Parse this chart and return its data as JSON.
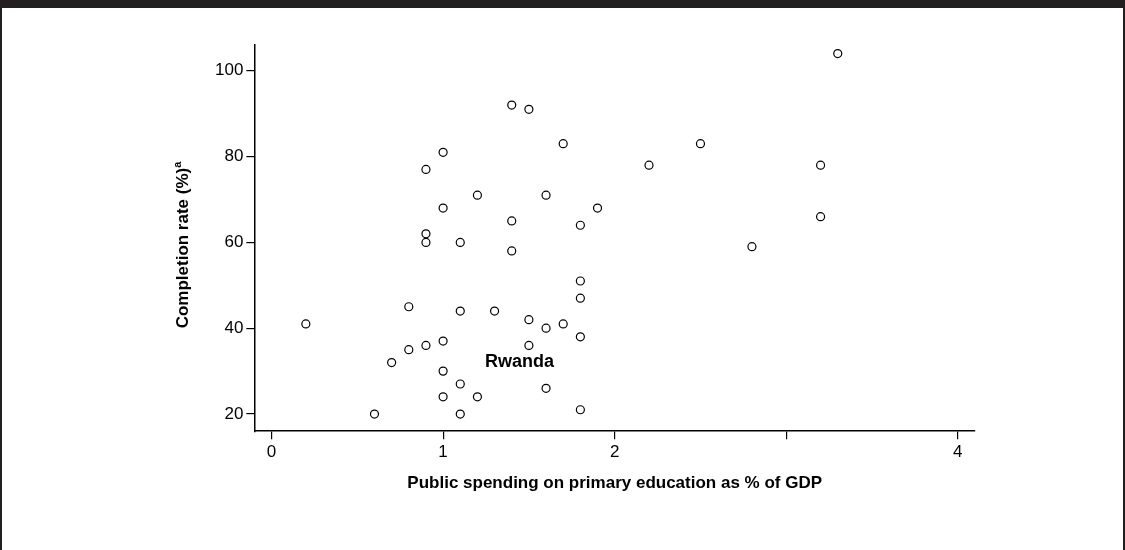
{
  "chart_data": {
    "type": "scatter",
    "xlabel": "Public spending on primary education as % of GDP",
    "ylabel": "Completion rate (%)$^{a}$",
    "x": [
      0.2,
      0.6,
      0.7,
      0.8,
      0.8,
      0.9,
      0.9,
      0.9,
      0.9,
      1.0,
      1.0,
      1.0,
      1.0,
      1.0,
      1.1,
      1.1,
      1.1,
      1.1,
      1.2,
      1.2,
      1.3,
      1.4,
      1.4,
      1.4,
      1.5,
      1.5,
      1.5,
      1.6,
      1.6,
      1.6,
      1.7,
      1.7,
      1.8,
      1.8,
      1.8,
      1.8,
      1.8,
      1.9,
      3.3,
      2.5,
      2.2,
      3.2,
      3.2,
      2.8
    ],
    "values": [
      41,
      20,
      32,
      45,
      35,
      77,
      62,
      60,
      36,
      81,
      68,
      37,
      30,
      24,
      60,
      44,
      27,
      20,
      71,
      24,
      44,
      92,
      65,
      58,
      91,
      42,
      36,
      71,
      40,
      26,
      83,
      41,
      64,
      51,
      47,
      38,
      21,
      68,
      104,
      83,
      78,
      78,
      66,
      59
    ],
    "color": "#000000",
    "marker": "circle",
    "xlim": [
      -0.1,
      4.1
    ],
    "ylim": [
      16,
      106
    ],
    "xticks": [
      0,
      1,
      2,
      {
        "value": 3,
        "label": null
      },
      4
    ],
    "yticks": [
      20,
      40,
      60,
      80,
      100
    ],
    "annotations": [
      "Rwanda"
    ]
  }
}
